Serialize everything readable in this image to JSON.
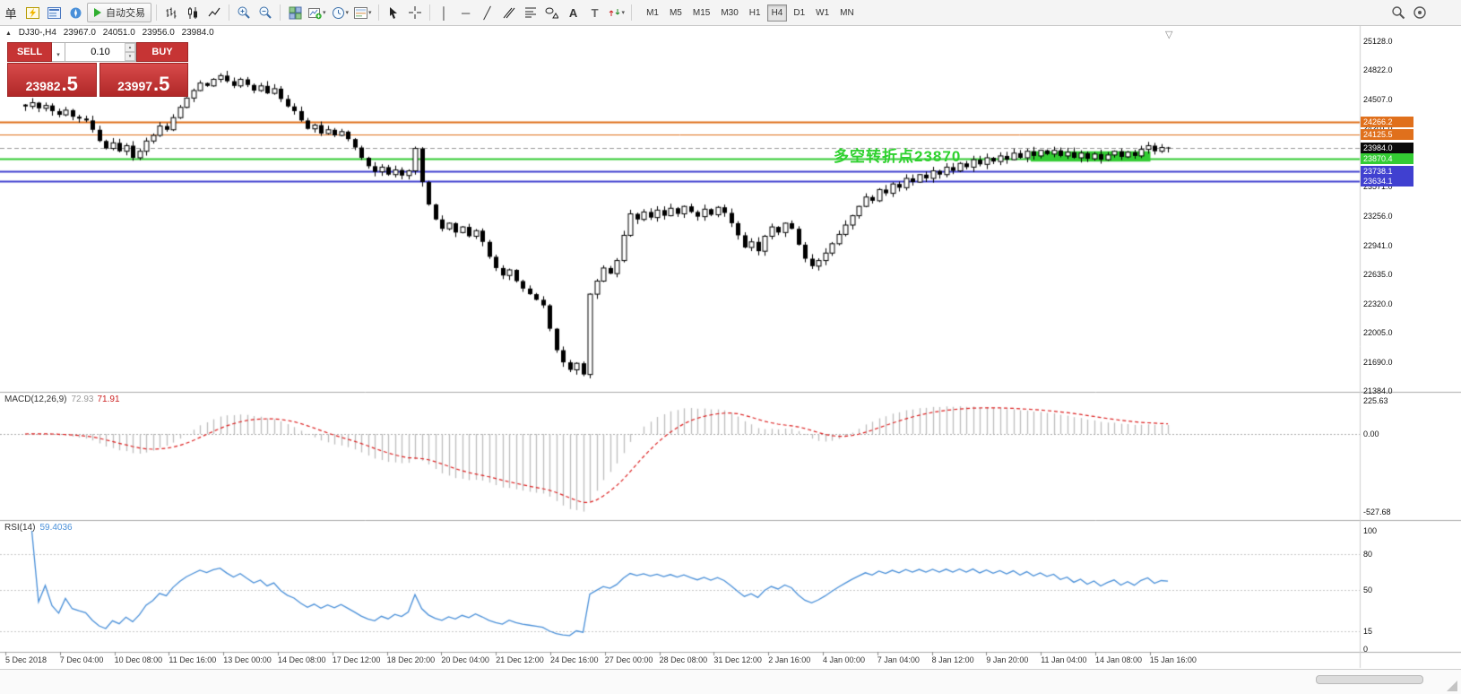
{
  "colors": {
    "trade_red": "#C63434",
    "line_orange": "#E0701C",
    "line_green": "#33CC33",
    "line_blue": "#4040D0",
    "current_price_label": "#0A0A0A",
    "macd_histogram": "#BDBDBD",
    "macd_signal": "#DD2222",
    "rsi_line": "#4A90D9",
    "annotation_green": "#2FD12F"
  },
  "toolbar": {
    "new_order_label": "单",
    "autotrade_label": "自动交易",
    "icons": [
      "market-watch-icon",
      "data-window-icon",
      "navigator-icon",
      "autotrade-play-icon",
      "bar-chart-icon",
      "candlestick-chart-icon",
      "line-chart-icon",
      "zoom-in-icon",
      "zoom-out-icon",
      "tile-windows-icon",
      "new-chart-icon",
      "period-icon",
      "template-icon",
      "cursor-icon",
      "crosshair-icon",
      "vertical-line-icon",
      "horizontal-line-icon",
      "trendline-icon",
      "channel-icon",
      "fibonacci-icon",
      "shapes-icon",
      "text-icon",
      "label-icon",
      "arrows-icon",
      "search-icon",
      "support-icon"
    ],
    "timeframes": [
      "M1",
      "M5",
      "M15",
      "M30",
      "H1",
      "H4",
      "D1",
      "W1",
      "MN"
    ],
    "active_timeframe": "H4"
  },
  "chart_header": {
    "symbol_period": "DJ30-,H4",
    "open": "23967.0",
    "high": "24051.0",
    "low": "23956.0",
    "close": "23984.0"
  },
  "trade_panel": {
    "sell_label": "SELL",
    "buy_label": "BUY",
    "volume": "0.10",
    "sell_price_main": "23982",
    "sell_price_frac": ".5",
    "buy_price_main": "23997",
    "buy_price_frac": ".5"
  },
  "annotation": {
    "text": "多空转折点23870"
  },
  "price_axis_ticks": [
    {
      "label": "25128.0",
      "price": 25128
    },
    {
      "label": "24822.0",
      "price": 24822
    },
    {
      "label": "24507.0",
      "price": 24507
    },
    {
      "label": "24201.0",
      "price": 24201
    },
    {
      "label": "23886.0",
      "price": 23886
    },
    {
      "label": "23571.0",
      "price": 23571
    },
    {
      "label": "23256.0",
      "price": 23256
    },
    {
      "label": "22941.0",
      "price": 22941
    },
    {
      "label": "22635.0",
      "price": 22635
    },
    {
      "label": "22320.0",
      "price": 22320
    },
    {
      "label": "22005.0",
      "price": 22005
    },
    {
      "label": "21690.0",
      "price": 21690
    },
    {
      "label": "21384.0",
      "price": 21384
    }
  ],
  "macd_panel": {
    "name": "MACD(12,26,9)",
    "value_main": "72.93",
    "value_signal": "71.91",
    "axis": [
      {
        "label": "225.63",
        "value": 225.63
      },
      {
        "label": "0.00",
        "value": 0
      },
      {
        "label": "-527.68",
        "value": -527.68
      }
    ]
  },
  "rsi_panel": {
    "name": "RSI(14)",
    "value": "59.4036",
    "axis": [
      {
        "label": "100",
        "value": 100
      },
      {
        "label": "80",
        "value": 80
      },
      {
        "label": "50",
        "value": 50
      },
      {
        "label": "15",
        "value": 15
      },
      {
        "label": "0",
        "value": 0
      }
    ],
    "levels": [
      80,
      50,
      15
    ]
  },
  "time_axis": [
    "5 Dec 2018",
    "7 Dec 04:00",
    "10 Dec 08:00",
    "11 Dec 16:00",
    "13 Dec 00:00",
    "14 Dec 08:00",
    "17 Dec 12:00",
    "18 Dec 20:00",
    "20 Dec 04:00",
    "21 Dec 12:00",
    "24 Dec 16:00",
    "27 Dec 00:00",
    "28 Dec 08:00",
    "31 Dec 12:00",
    "2 Jan 16:00",
    "4 Jan 00:00",
    "7 Jan 04:00",
    "8 Jan 12:00",
    "9 Jan 20:00",
    "11 Jan 04:00",
    "14 Jan 08:00",
    "15 Jan 16:00"
  ],
  "chart_data": {
    "type": "candlestick",
    "symbol": "DJ30-",
    "timeframe": "H4",
    "price_range": [
      21384,
      25128
    ],
    "closes": [
      24430,
      24470,
      24410,
      24440,
      24380,
      24340,
      24390,
      24320,
      24300,
      24280,
      24180,
      24060,
      23980,
      24040,
      23950,
      24010,
      23880,
      23950,
      24060,
      24120,
      24220,
      24180,
      24310,
      24420,
      24520,
      24600,
      24680,
      24650,
      24720,
      24760,
      24700,
      24650,
      24720,
      24660,
      24600,
      24650,
      24570,
      24620,
      24510,
      24430,
      24380,
      24280,
      24190,
      24230,
      24140,
      24180,
      24120,
      24160,
      24080,
      23990,
      23880,
      23790,
      23730,
      23780,
      23700,
      23750,
      23690,
      23740,
      23980,
      23620,
      23380,
      23220,
      23120,
      23180,
      23080,
      23140,
      23040,
      23100,
      22980,
      22820,
      22700,
      22620,
      22680,
      22560,
      22480,
      22420,
      22360,
      22300,
      22050,
      21820,
      21690,
      21610,
      21680,
      21560,
      22420,
      22560,
      22700,
      22640,
      22780,
      23050,
      23280,
      23220,
      23300,
      23240,
      23320,
      23260,
      23340,
      23280,
      23360,
      23300,
      23250,
      23330,
      23270,
      23350,
      23290,
      23180,
      23050,
      22920,
      22980,
      22880,
      23040,
      23140,
      23080,
      23180,
      23120,
      22950,
      22800,
      22720,
      22780,
      22860,
      22960,
      23060,
      23160,
      23260,
      23360,
      23460,
      23420,
      23540,
      23500,
      23600,
      23560,
      23660,
      23620,
      23700,
      23660,
      23740,
      23700,
      23780,
      23740,
      23820,
      23780,
      23860,
      23810,
      23880,
      23840,
      23900,
      23860,
      23930,
      23880,
      23950,
      23900,
      23960,
      23920,
      23960,
      23900,
      23940,
      23880,
      23930,
      23870,
      23920,
      23860,
      23910,
      23950,
      23890,
      23940,
      23900,
      23970,
      24010,
      23950,
      23990,
      23984
    ],
    "hlines": [
      {
        "price": 24266.2,
        "label": "24266.2",
        "color": "#E0701C",
        "label_bg": "#E0701C",
        "style": "solid",
        "width": 2
      },
      {
        "price": 24125.5,
        "label": "24125.5",
        "color": "#E0701C",
        "label_bg": "#E0701C",
        "style": "solid",
        "width": 1
      },
      {
        "price": 23984.0,
        "label": "23984.0",
        "color": "#9A9A9A",
        "label_bg": "#0A0A0A",
        "style": "dash",
        "width": 1
      },
      {
        "price": 23870.4,
        "label": "23870.4",
        "color": "#33CC33",
        "label_bg": "#33CC33",
        "style": "solid",
        "width": 2
      },
      {
        "price": 23738.1,
        "label": "23738.1",
        "color": "#4040D0",
        "label_bg": "#4040D0",
        "style": "solid",
        "width": 2
      },
      {
        "price": 23634.1,
        "label": "23634.1",
        "color": "#4040D0",
        "label_bg": "#4040D0",
        "style": "solid",
        "width": 2
      }
    ],
    "zone": {
      "bar_start": 150,
      "bar_end": 167,
      "price_top": 23950,
      "price_bottom": 23840,
      "color": "#33CC33"
    },
    "indicators": [
      {
        "type": "MACD",
        "params": [
          12,
          26,
          9
        ],
        "last_values": [
          72.93,
          71.91
        ],
        "range": [
          -527.68,
          225.63
        ]
      },
      {
        "type": "RSI",
        "params": [
          14
        ],
        "last_value": 59.4036,
        "range": [
          0,
          100
        ]
      }
    ]
  }
}
